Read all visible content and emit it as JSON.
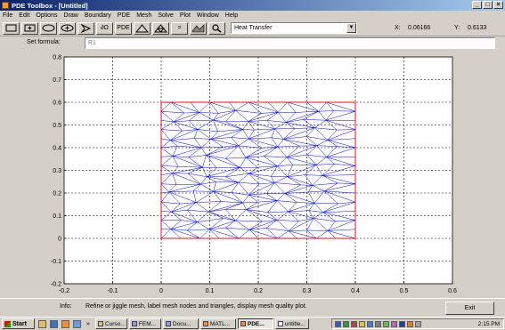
{
  "window": {
    "title": "PDE Toolbox - [Untitled]",
    "controls": [
      "_",
      "□",
      "×"
    ],
    "menubar_controls": [
      "_",
      "□",
      "×"
    ]
  },
  "menu": [
    "File",
    "Edit",
    "Options",
    "Draw",
    "Boundary",
    "PDE",
    "Mesh",
    "Solve",
    "Plot",
    "Window",
    "Help"
  ],
  "toolbar": {
    "buttons": [
      {
        "name": "rectangle-corner-button",
        "icon": "rect-icon"
      },
      {
        "name": "rectangle-center-button",
        "icon": "rect-center-icon"
      },
      {
        "name": "ellipse-corner-button",
        "icon": "ellipse-icon"
      },
      {
        "name": "ellipse-center-button",
        "icon": "ellipse-center-icon"
      },
      {
        "name": "polygon-button",
        "icon": "polygon-icon"
      },
      {
        "name": "boundary-mode-button",
        "label": "∂Ω"
      },
      {
        "name": "pde-spec-button",
        "label": "PDE"
      },
      {
        "name": "init-mesh-button",
        "icon": "triangle-icon"
      },
      {
        "name": "refine-mesh-button",
        "icon": "refined-triangle-icon"
      },
      {
        "name": "solve-button",
        "label": "="
      },
      {
        "name": "plot-button",
        "icon": "surface-plot-icon"
      },
      {
        "name": "zoom-button",
        "icon": "zoom-icon"
      }
    ],
    "application_mode": "Heat Transfer",
    "x_label": "X:",
    "x_value": "0.06166",
    "y_label": "Y:",
    "y_value": "0.6133"
  },
  "formula": {
    "label": "Set formula:",
    "value": "R1"
  },
  "chart_data": {
    "type": "mesh",
    "title": "",
    "xlabel": "",
    "ylabel": "",
    "xlim": [
      -0.2,
      0.6
    ],
    "ylim": [
      -0.2,
      0.8
    ],
    "x_ticks": [
      "-0.2",
      "-0.1",
      "0",
      "0.1",
      "0.2",
      "0.3",
      "0.4",
      "0.5",
      "0.6"
    ],
    "y_ticks": [
      "-0.2",
      "-0.1",
      "0",
      "0.1",
      "0.2",
      "0.3",
      "0.4",
      "0.5",
      "0.6",
      "0.7",
      "0.8"
    ],
    "grid": "dashed",
    "geometry": {
      "name": "R1",
      "shape": "rectangle",
      "x": [
        0,
        0.4
      ],
      "y": [
        0,
        0.6
      ]
    },
    "mesh_spacing": 0.04,
    "boundary_color": "#ff0000",
    "mesh_color": "#0000ff"
  },
  "info": {
    "label": "Info:",
    "text": "Refine or jiggle mesh, label mesh nodes and triangles, display mesh quality plot.",
    "exit_label": "Exit"
  },
  "taskbar": {
    "start_label": "Start",
    "items": [
      {
        "label": "Curso...",
        "active": false
      },
      {
        "label": "FEM...",
        "active": false
      },
      {
        "label": "Docu...",
        "active": false
      },
      {
        "label": "MATL...",
        "active": false
      },
      {
        "label": "PDE...",
        "active": true
      },
      {
        "label": "untitle...",
        "active": false
      }
    ],
    "overflow": "»",
    "clock": "2:15 PM"
  }
}
